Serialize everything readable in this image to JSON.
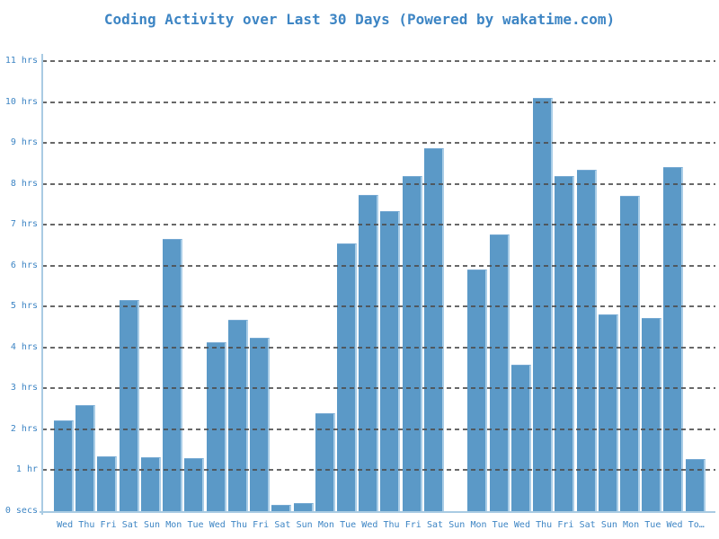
{
  "chart_data": {
    "type": "bar",
    "title": "Coding Activity over Last 30 Days (Powered by wakatime.com)",
    "units": "hours",
    "categories": [
      "Wed",
      "Thu",
      "Fri",
      "Sat",
      "Sun",
      "Mon",
      "Tue",
      "Wed",
      "Thu",
      "Fri",
      "Sat",
      "Sun",
      "Mon",
      "Tue",
      "Wed",
      "Thu",
      "Fri",
      "Sat",
      "Sun",
      "Mon",
      "Tue",
      "Wed",
      "Thu",
      "Fri",
      "Sat",
      "Sun",
      "Mon",
      "Tue",
      "Wed",
      "To…"
    ],
    "values": [
      2.22,
      2.6,
      1.33,
      5.15,
      1.32,
      6.65,
      1.3,
      4.13,
      4.68,
      4.24,
      0.15,
      0.2,
      2.4,
      6.55,
      7.73,
      7.33,
      8.2,
      8.88,
      0,
      5.9,
      6.77,
      3.58,
      10.1,
      8.2,
      8.35,
      4.8,
      7.7,
      4.71,
      8.4,
      1.28
    ],
    "yticks": [
      {
        "value": 0,
        "label": "0 secs"
      },
      {
        "value": 1,
        "label": "1 hr"
      },
      {
        "value": 2,
        "label": "2 hrs"
      },
      {
        "value": 3,
        "label": "3 hrs"
      },
      {
        "value": 4,
        "label": "4 hrs"
      },
      {
        "value": 5,
        "label": "5 hrs"
      },
      {
        "value": 6,
        "label": "6 hrs"
      },
      {
        "value": 7,
        "label": "7 hrs"
      },
      {
        "value": 8,
        "label": "8 hrs"
      },
      {
        "value": 9,
        "label": "9 hrs"
      },
      {
        "value": 10,
        "label": "10 hrs"
      },
      {
        "value": 11,
        "label": "11 hrs"
      }
    ],
    "xlabel": "",
    "ylabel": "",
    "ylim": [
      0,
      11.05
    ],
    "grid": "horizontal-dashed",
    "legend": "none",
    "colors": {
      "bar_fill": "#5b99c7",
      "bar_edge_light": "#a9cde7",
      "bar_edge_top": "#74a8d2",
      "axis": "#a9cbe3",
      "gridline": "#4d4d4d",
      "text": "#3d85c4",
      "background": "#ffffff"
    }
  }
}
